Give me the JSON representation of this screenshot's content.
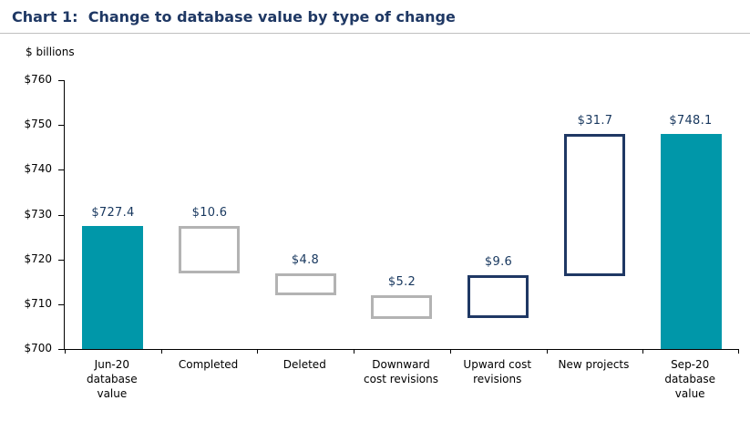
{
  "title": "Chart 1:  Change to database value by type of change",
  "chart_data": {
    "type": "bar",
    "subtype": "waterfall",
    "title": "Chart 1:  Change to database value by type of change",
    "ylabel": "$ billions",
    "xlabel": "",
    "ylim": [
      700,
      760
    ],
    "ytick_step": 10,
    "ytick_labels": [
      "$700",
      "$710",
      "$720",
      "$730",
      "$740",
      "$750",
      "$760"
    ],
    "grid": false,
    "legend": false,
    "categories": [
      "Jun-20 database value",
      "Completed",
      "Deleted",
      "Downward cost revisions",
      "Upward cost revisions",
      "New projects",
      "Sep-20 database value"
    ],
    "bars": [
      {
        "category": "Jun-20 database value",
        "label_lines": [
          "Jun-20",
          "database",
          "value"
        ],
        "value_label": "$727.4",
        "value": 727.4,
        "start": 700,
        "end": 727.4,
        "style": "solid-teal"
      },
      {
        "category": "Completed",
        "label_lines": [
          "Completed"
        ],
        "value_label": "$10.6",
        "value": -10.6,
        "start": 727.4,
        "end": 716.8,
        "style": "outline-gray"
      },
      {
        "category": "Deleted",
        "label_lines": [
          "Deleted"
        ],
        "value_label": "$4.8",
        "value": -4.8,
        "start": 716.8,
        "end": 712.0,
        "style": "outline-gray"
      },
      {
        "category": "Downward cost revisions",
        "label_lines": [
          "Downward",
          "cost revisions"
        ],
        "value_label": "$5.2",
        "value": -5.2,
        "start": 712.0,
        "end": 706.8,
        "style": "outline-gray"
      },
      {
        "category": "Upward cost revisions",
        "label_lines": [
          "Upward cost",
          "revisions"
        ],
        "value_label": "$9.6",
        "value": 9.6,
        "start": 706.8,
        "end": 716.4,
        "style": "outline-navy"
      },
      {
        "category": "New projects",
        "label_lines": [
          "New projects"
        ],
        "value_label": "$31.7",
        "value": 31.7,
        "start": 716.4,
        "end": 748.1,
        "style": "outline-navy"
      },
      {
        "category": "Sep-20 database value",
        "label_lines": [
          "Sep-20",
          "database",
          "value"
        ],
        "value_label": "$748.1",
        "value": 748.1,
        "start": 700,
        "end": 748.1,
        "style": "solid-teal"
      }
    ],
    "colors": {
      "solid_bar": "#0097A9",
      "outline_navy": "#1F3864",
      "outline_gray": "#B3B3B3",
      "title_text": "#1F3864",
      "value_label_text": "#17375E",
      "axis_text": "#000000"
    }
  }
}
